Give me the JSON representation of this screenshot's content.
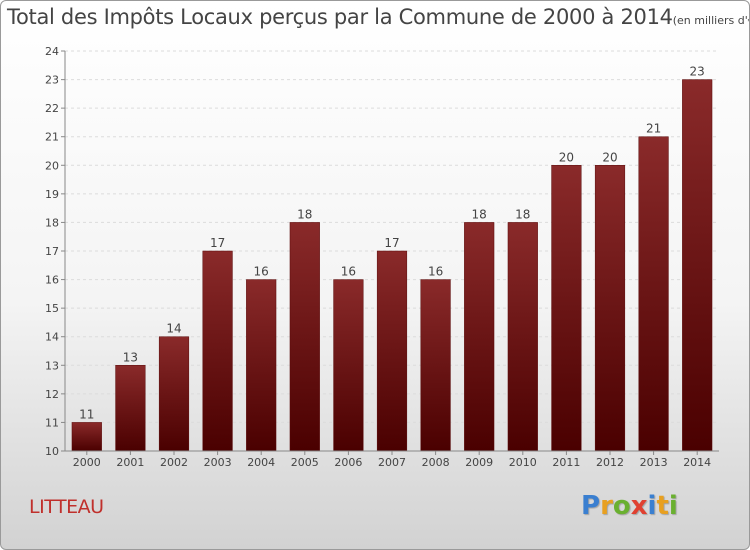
{
  "title": "Total des Impôts Locaux perçus par la Commune de 2000 à 2014",
  "subtitle": "(en milliers d'€)",
  "commune": "LITTEAU",
  "logo": {
    "letters": [
      "P",
      "r",
      "o",
      "x",
      "i",
      "t",
      "i"
    ],
    "colors": [
      "#3a7fd0",
      "#e8a020",
      "#6ab030",
      "#e04030",
      "#3a7fd0",
      "#e8a020",
      "#6ab030"
    ]
  },
  "chart_data": {
    "type": "bar",
    "categories": [
      "2000",
      "2001",
      "2002",
      "2003",
      "2004",
      "2005",
      "2006",
      "2007",
      "2008",
      "2009",
      "2010",
      "2011",
      "2012",
      "2013",
      "2014"
    ],
    "values": [
      11,
      13,
      14,
      17,
      16,
      18,
      16,
      17,
      16,
      18,
      18,
      20,
      20,
      21,
      23
    ],
    "ylim": [
      10,
      24
    ],
    "yticks": [
      "10",
      "11",
      "12",
      "13",
      "14",
      "15",
      "16",
      "17",
      "18",
      "19",
      "20",
      "21",
      "22",
      "23",
      "24"
    ],
    "grid": true,
    "bar_color": "#7a1a1a",
    "data_labels": true
  }
}
